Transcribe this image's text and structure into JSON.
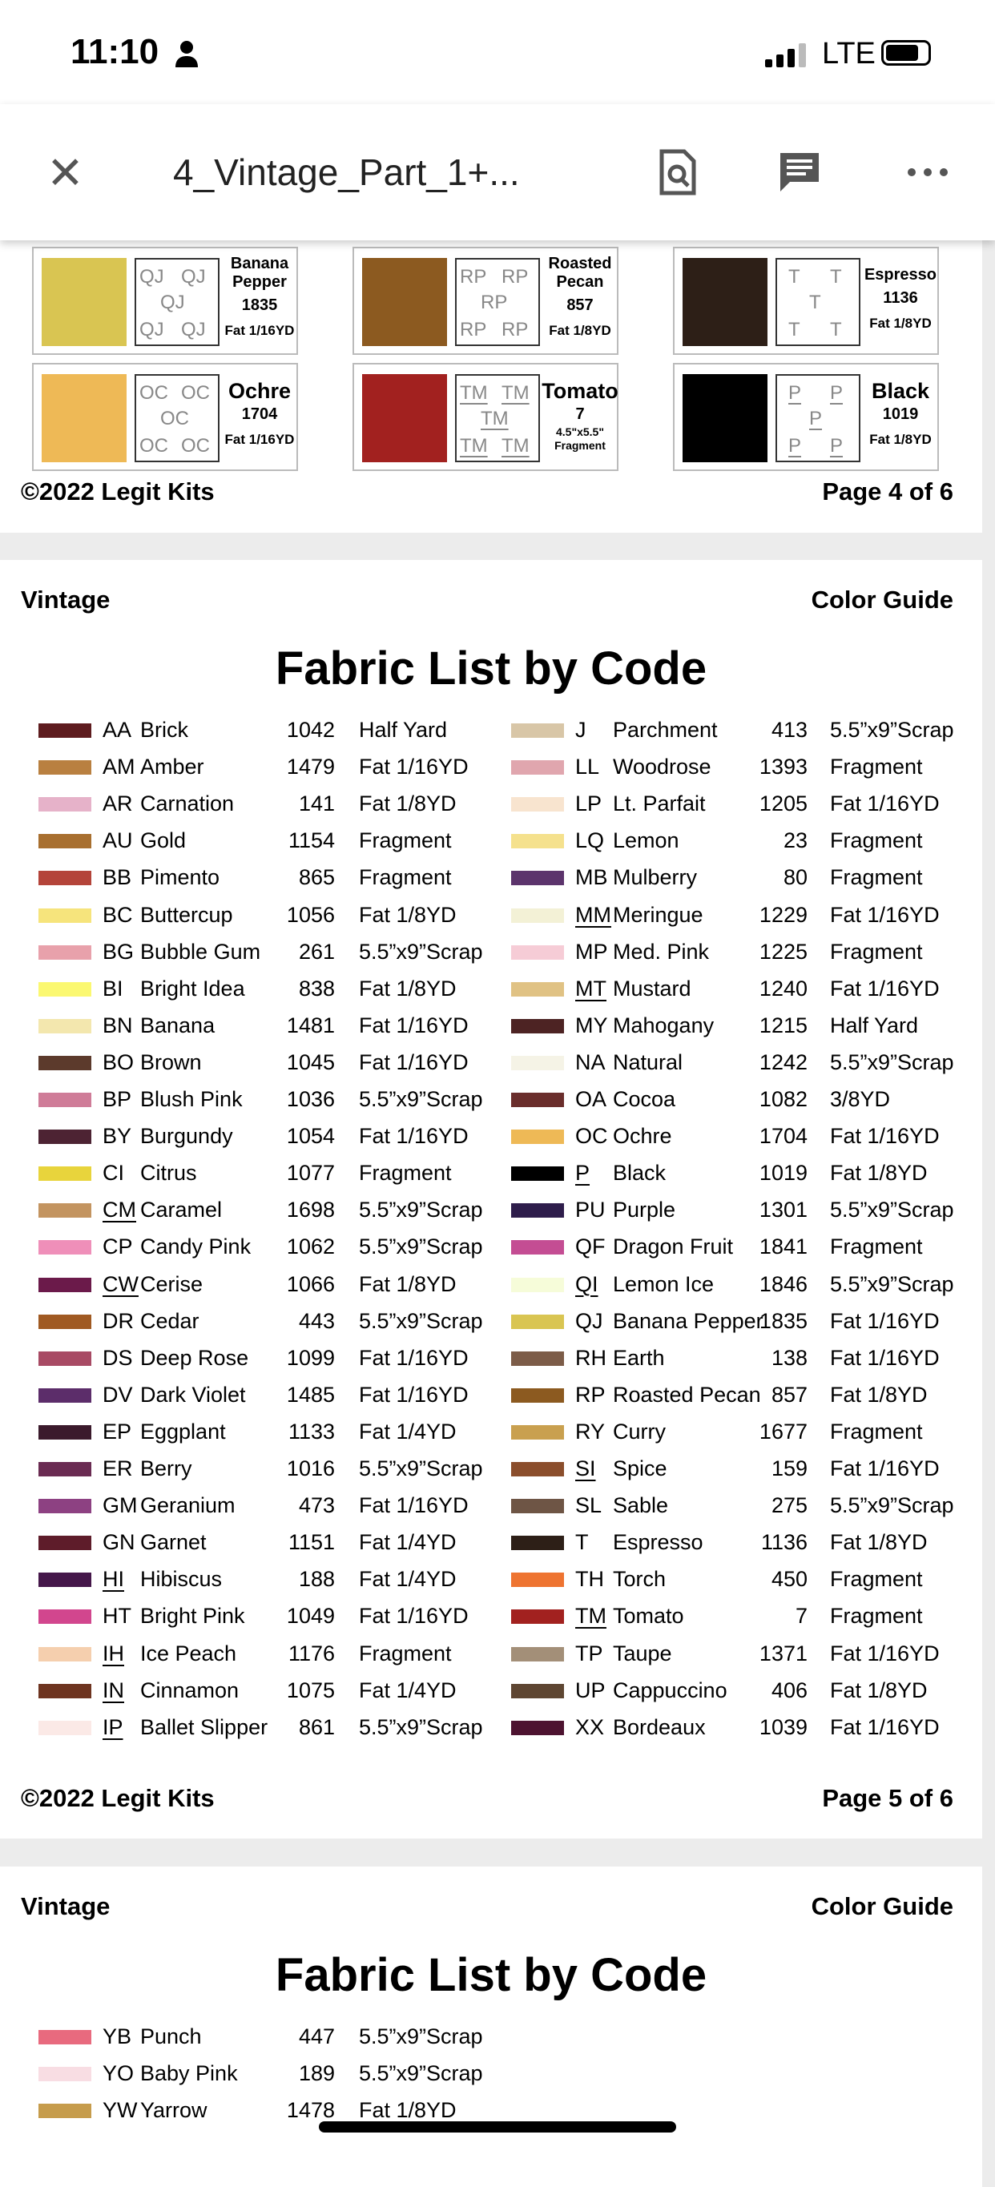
{
  "status_bar": {
    "time": "11:10",
    "network": "LTE"
  },
  "toolbar": {
    "title": "4_Vintage_Part_1+...",
    "icons": [
      "close-icon",
      "search-document-icon",
      "comment-icon",
      "more-icon"
    ]
  },
  "page4": {
    "cards": [
      {
        "code": "QJ",
        "name": "Banana Pepper",
        "number": "1835",
        "size": "Fat 1/16YD",
        "color": "#d9c552",
        "underline": false
      },
      {
        "code": "RP",
        "name": "Roasted Pecan",
        "number": "857",
        "size": "Fat 1/8YD",
        "color": "#8c5a20",
        "underline": false
      },
      {
        "code": "T",
        "name": "Espresso",
        "number": "1136",
        "size": "Fat 1/8YD",
        "color": "#2d1f17",
        "underline": false
      },
      {
        "code": "OC",
        "name": "Ochre",
        "number": "1704",
        "size": "Fat 1/16YD",
        "color": "#eeb956",
        "underline": false
      },
      {
        "code": "TM",
        "name": "Tomato",
        "number": "7",
        "size": "4.5\"x5.5\" Fragment",
        "color": "#a2211f",
        "underline": true
      },
      {
        "code": "P",
        "name": "Black",
        "number": "1019",
        "size": "Fat 1/8YD",
        "color": "#000000",
        "underline": true
      }
    ],
    "copyright": "©2022 Legit Kits",
    "page": "Page 4 of 6"
  },
  "page5": {
    "left_header": "Vintage",
    "right_header": "Color Guide",
    "title": "Fabric List by Code",
    "left": [
      [
        "AA",
        "Brick",
        "1042",
        "Half Yard",
        "#5e1c1f",
        0
      ],
      [
        "AM",
        "Amber",
        "1479",
        "Fat 1/16YD",
        "#b98040",
        0
      ],
      [
        "AR",
        "Carnation",
        "141",
        "Fat 1/8YD",
        "#e6b2c9",
        0
      ],
      [
        "AU",
        "Gold",
        "1154",
        "Fragment",
        "#a86f2f",
        0
      ],
      [
        "BB",
        "Pimento",
        "865",
        "Fragment",
        "#b4443a",
        0
      ],
      [
        "BC",
        "Buttercup",
        "1056",
        "Fat 1/8YD",
        "#f6e47c",
        0
      ],
      [
        "BG",
        "Bubble Gum",
        "261",
        "5.5”x9”Scrap",
        "#e8a1ab",
        0
      ],
      [
        "BI",
        "Bright Idea",
        "838",
        "Fat 1/8YD",
        "#fbf871",
        0
      ],
      [
        "BN",
        "Banana",
        "1481",
        "Fat 1/16YD",
        "#f3e7ae",
        0
      ],
      [
        "BO",
        "Brown",
        "1045",
        "Fat 1/16YD",
        "#5c3a2c",
        0
      ],
      [
        "BP",
        "Blush Pink",
        "1036",
        "5.5”x9”Scrap",
        "#cf7c98",
        0
      ],
      [
        "BY",
        "Burgundy",
        "1054",
        "Fat 1/16YD",
        "#4d2333",
        0
      ],
      [
        "CI",
        "Citrus",
        "1077",
        "Fragment",
        "#e8d43c",
        0
      ],
      [
        "CM",
        "Caramel",
        "1698",
        "5.5”x9”Scrap",
        "#c39460",
        1
      ],
      [
        "CP",
        "Candy Pink",
        "1062",
        "5.5”x9”Scrap",
        "#ef8fb9",
        0
      ],
      [
        "CW",
        "Cerise",
        "1066",
        "Fat 1/8YD",
        "#6b1a4a",
        1
      ],
      [
        "DR",
        "Cedar",
        "443",
        "5.5”x9”Scrap",
        "#a05a22",
        0
      ],
      [
        "DS",
        "Deep Rose",
        "1099",
        "Fat 1/16YD",
        "#a84a64",
        0
      ],
      [
        "DV",
        "Dark Violet",
        "1485",
        "Fat 1/16YD",
        "#5c2d6a",
        0
      ],
      [
        "EP",
        "Eggplant",
        "1133",
        "Fat 1/4YD",
        "#3b1a2c",
        0
      ],
      [
        "ER",
        "Berry",
        "1016",
        "5.5”x9”Scrap",
        "#6a2b52",
        0
      ],
      [
        "GM",
        "Geranium",
        "473",
        "Fat 1/16YD",
        "#8d4182",
        0
      ],
      [
        "GN",
        "Garnet",
        "1151",
        "Fat 1/4YD",
        "#5e1c2a",
        0
      ],
      [
        "HI",
        "Hibiscus",
        "188",
        "Fat 1/4YD",
        "#45174a",
        1
      ],
      [
        "HT",
        "Bright Pink",
        "1049",
        "Fat 1/16YD",
        "#d2468e",
        0
      ],
      [
        "IH",
        "Ice Peach",
        "1176",
        "Fragment",
        "#f5cfae",
        1
      ],
      [
        "IN",
        "Cinnamon",
        "1075",
        "Fat 1/4YD",
        "#6e3420",
        1
      ],
      [
        "IP",
        "Ballet Slipper",
        "861",
        "5.5”x9”Scrap",
        "#fbe9e6",
        1
      ]
    ],
    "right": [
      [
        "J",
        "Parchment",
        "413",
        "5.5”x9”Scrap",
        "#d8c6a7",
        0
      ],
      [
        "LL",
        "Woodrose",
        "1393",
        "Fragment",
        "#e0a6ae",
        0
      ],
      [
        "LP",
        "Lt. Parfait",
        "1205",
        "Fat 1/16YD",
        "#f8e4cf",
        0
      ],
      [
        "LQ",
        "Lemon",
        "23",
        "Fragment",
        "#f5e18d",
        0
      ],
      [
        "MB",
        "Mulberry",
        "80",
        "Fragment",
        "#5c346c",
        0
      ],
      [
        "MM",
        "Meringue",
        "1229",
        "Fat 1/16YD",
        "#f3f1d6",
        1
      ],
      [
        "MP",
        "Med. Pink",
        "1225",
        "Fragment",
        "#f6ccd6",
        0
      ],
      [
        "MT",
        "Mustard",
        "1240",
        "Fat 1/16YD",
        "#e0c284",
        1
      ],
      [
        "MY",
        "Mahogany",
        "1215",
        "Half Yard",
        "#4d2323",
        0
      ],
      [
        "NA",
        "Natural",
        "1242",
        "5.5”x9”Scrap",
        "#f5f3e6",
        0
      ],
      [
        "OA",
        "Cocoa",
        "1082",
        "3/8YD",
        "#6a2e2c",
        0
      ],
      [
        "OC",
        "Ochre",
        "1704",
        "Fat 1/16YD",
        "#eeb956",
        0
      ],
      [
        "P",
        "Black",
        "1019",
        "Fat 1/8YD",
        "#000000",
        1
      ],
      [
        "PU",
        "Purple",
        "1301",
        "5.5”x9”Scrap",
        "#2e1d4b",
        0
      ],
      [
        "QF",
        "Dragon Fruit",
        "1841",
        "Fragment",
        "#c44d93",
        0
      ],
      [
        "QI",
        "Lemon Ice",
        "1846",
        "5.5”x9”Scrap",
        "#f6fcd9",
        1
      ],
      [
        "QJ",
        "Banana Pepper",
        "1835",
        "Fat 1/16YD",
        "#d9c552",
        0
      ],
      [
        "RH",
        "Earth",
        "138",
        "Fat 1/16YD",
        "#7c5c48",
        0
      ],
      [
        "RP",
        "Roasted Pecan",
        "857",
        "Fat 1/8YD",
        "#8c5a20",
        0
      ],
      [
        "RY",
        "Curry",
        "1677",
        "Fragment",
        "#c9a04f",
        0
      ],
      [
        "SI",
        "Spice",
        "159",
        "Fat 1/16YD",
        "#8b4e2c",
        1
      ],
      [
        "SL",
        "Sable",
        "275",
        "5.5”x9”Scrap",
        "#6e5545",
        0
      ],
      [
        "T",
        "Espresso",
        "1136",
        "Fat 1/8YD",
        "#2d1f17",
        0
      ],
      [
        "TH",
        "Torch",
        "450",
        "Fragment",
        "#ee7431",
        0
      ],
      [
        "TM",
        "Tomato",
        "7",
        "Fragment",
        "#a2211f",
        1
      ],
      [
        "TP",
        "Taupe",
        "1371",
        "Fat 1/16YD",
        "#a38f78",
        0
      ],
      [
        "UP",
        "Cappuccino",
        "406",
        "Fat 1/8YD",
        "#5e4632",
        0
      ],
      [
        "XX",
        "Bordeaux",
        "1039",
        "Fat 1/16YD",
        "#4d1330",
        0
      ]
    ],
    "copyright": "©2022 Legit Kits",
    "page": "Page 5 of 6"
  },
  "page6": {
    "left_header": "Vintage",
    "right_header": "Color Guide",
    "title": "Fabric List by Code",
    "left": [
      [
        "YB",
        "Punch",
        "447",
        "5.5”x9”Scrap",
        "#e86a7e",
        0
      ],
      [
        "YO",
        "Baby Pink",
        "189",
        "5.5”x9”Scrap",
        "#f8dde3",
        0
      ],
      [
        "YW",
        "Yarrow",
        "1478",
        "Fat 1/8YD",
        "#c69c4c",
        0
      ]
    ]
  }
}
